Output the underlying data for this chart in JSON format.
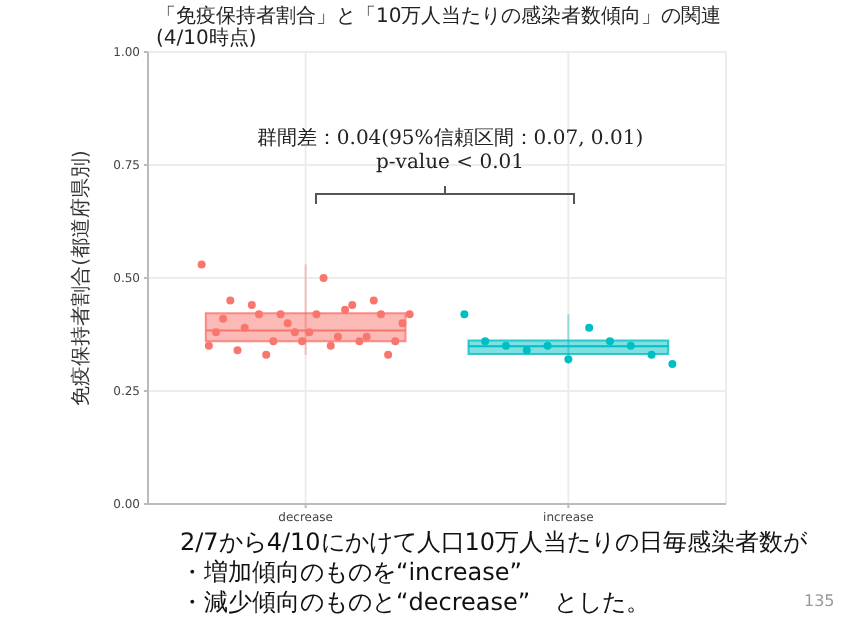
{
  "chart_data": {
    "type": "box",
    "title": "「免疫保持者割合」と「10万人当たりの感染者数傾向」の関連",
    "subtitle": "(4/10時点)",
    "ylabel": "免疫保持者割合(都道府県別)",
    "categories": [
      "decrease",
      "increase"
    ],
    "colors": [
      "#f8766d",
      "#00bfc4"
    ],
    "boxes": [
      {
        "low": 0.33,
        "q1": 0.36,
        "median": 0.384,
        "q3": 0.422,
        "high": 0.53
      },
      {
        "low": 0.31,
        "q1": 0.332,
        "median": 0.349,
        "q3": 0.362,
        "high": 0.42
      }
    ],
    "series": [
      {
        "type": "scatter",
        "color": "#f8766d",
        "x": [
          "decrease",
          "decrease",
          "decrease",
          "decrease",
          "decrease",
          "decrease",
          "decrease",
          "decrease",
          "decrease",
          "decrease",
          "decrease",
          "decrease",
          "decrease",
          "decrease",
          "decrease",
          "decrease",
          "decrease",
          "decrease",
          "decrease",
          "decrease",
          "decrease",
          "decrease",
          "decrease",
          "decrease",
          "decrease",
          "decrease",
          "decrease",
          "decrease",
          "decrease",
          "decrease"
        ],
        "values": [
          0.53,
          0.5,
          0.45,
          0.44,
          0.42,
          0.42,
          0.4,
          0.42,
          0.42,
          0.41,
          0.43,
          0.44,
          0.45,
          0.42,
          0.4,
          0.38,
          0.38,
          0.37,
          0.39,
          0.37,
          0.36,
          0.36,
          0.36,
          0.35,
          0.35,
          0.34,
          0.36,
          0.33,
          0.33,
          0.38
        ]
      },
      {
        "type": "scatter",
        "color": "#00bfc4",
        "x": [
          "increase",
          "increase",
          "increase",
          "increase",
          "increase",
          "increase",
          "increase",
          "increase",
          "increase",
          "increase",
          "increase"
        ],
        "values": [
          0.42,
          0.39,
          0.36,
          0.36,
          0.35,
          0.35,
          0.34,
          0.33,
          0.35,
          0.31,
          0.32
        ]
      }
    ],
    "ylim": [
      0,
      1
    ],
    "yticks": [
      {
        "value": 0,
        "label": "0.00"
      },
      {
        "value": 0.25,
        "label": "0.25"
      },
      {
        "value": 0.5,
        "label": "0.50"
      },
      {
        "value": 0.75,
        "label": "0.75"
      },
      {
        "value": 1,
        "label": "1.00"
      }
    ],
    "grid": true,
    "marker": "circle",
    "annotations": [
      "群間差：0.04(95%信頼区間：0.07, 0.01)",
      "p-value < 0.01",
      "2/7から4/10にかけて人口10万人当たりの日毎感染者数が",
      "・増加傾向のものを“increase”",
      "・減少傾向のものと“decrease”　とした。",
      "135"
    ]
  }
}
